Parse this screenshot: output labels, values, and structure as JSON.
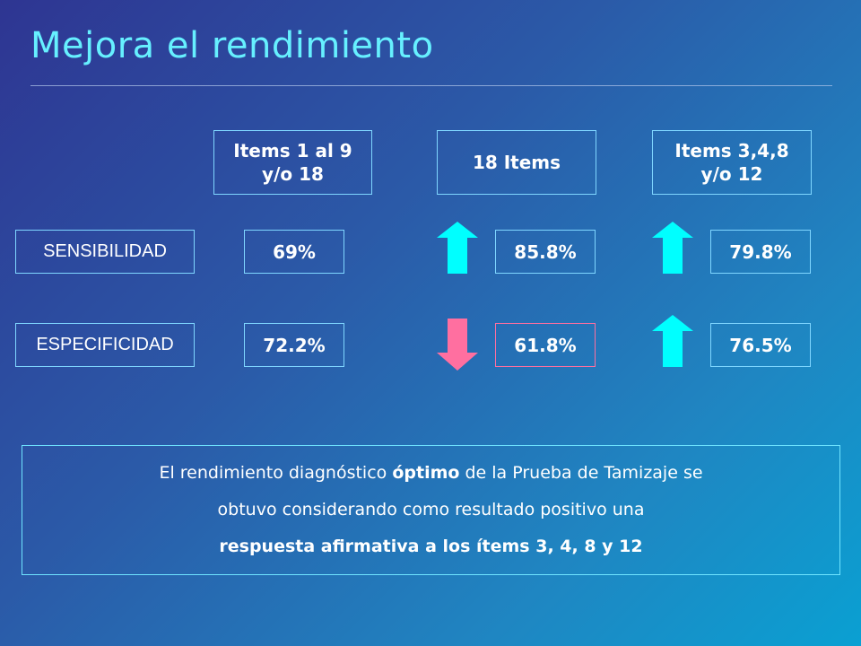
{
  "title": "Mejora el rendimiento",
  "headers": {
    "col1": "Items 1 al 9\ny/o 18",
    "col2": "18 Items",
    "col3": "Items 3,4,8\ny/o 12"
  },
  "rows": {
    "sensibilidad": {
      "label": "SENSIBILIDAD",
      "col1": "69%",
      "col2": "85.8%",
      "col3": "79.8%"
    },
    "especificidad": {
      "label": "ESPECIFICIDAD",
      "col1": "72.2%",
      "col2": "61.8%",
      "col3": "76.5%"
    }
  },
  "arrows": {
    "up_color": "#00ffff",
    "down_color": "#ff6fa0",
    "sens_col2": "up-arrow",
    "sens_col3": "up-arrow",
    "esp_col2": "down-arrow",
    "esp_col3": "up-arrow"
  },
  "note": {
    "line1_pre": "El rendimiento diagnóstico ",
    "line1_bold": "óptimo",
    "line1_post": " de la Prueba de Tamizaje se",
    "line2": "obtuvo considerando como resultado positivo una",
    "line3_bold": "respuesta afirmativa a los ítems 3, 4, 8 y 12"
  }
}
